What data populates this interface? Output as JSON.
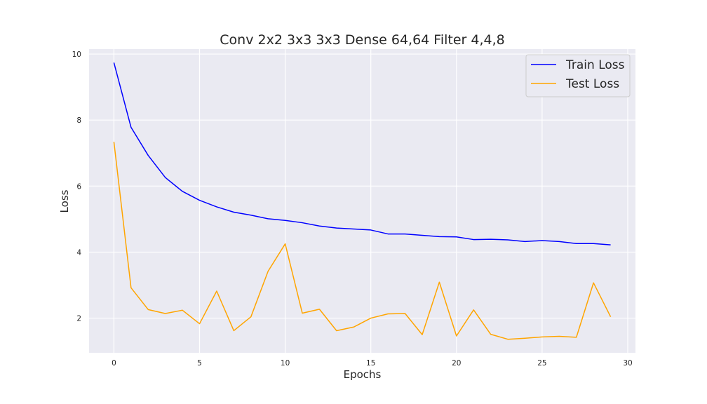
{
  "chart_data": {
    "type": "line",
    "title": "Conv 2x2 3x3 3x3 Dense 64,64 Filter 4,4,8",
    "xlabel": "Epochs",
    "ylabel": "Loss",
    "xlim": [
      -1.45,
      30.45
    ],
    "ylim": [
      0.95,
      10.15
    ],
    "xticks": [
      0,
      5,
      10,
      15,
      20,
      25,
      30
    ],
    "yticks": [
      2,
      4,
      6,
      8,
      10
    ],
    "grid": true,
    "legend_position": "top-right",
    "x": [
      0,
      1,
      2,
      3,
      4,
      5,
      6,
      7,
      8,
      9,
      10,
      11,
      12,
      13,
      14,
      15,
      16,
      17,
      18,
      19,
      20,
      21,
      22,
      23,
      24,
      25,
      26,
      27,
      28,
      29
    ],
    "series": [
      {
        "name": "Train Loss",
        "color": "#0000ff",
        "values": [
          9.74,
          7.78,
          6.93,
          6.26,
          5.84,
          5.57,
          5.37,
          5.21,
          5.12,
          5.01,
          4.96,
          4.89,
          4.79,
          4.73,
          4.7,
          4.67,
          4.55,
          4.55,
          4.51,
          4.47,
          4.46,
          4.38,
          4.39,
          4.37,
          4.32,
          4.35,
          4.32,
          4.26,
          4.26,
          4.22
        ]
      },
      {
        "name": "Test Loss",
        "color": "#ffa500",
        "values": [
          7.34,
          2.92,
          2.26,
          2.14,
          2.24,
          1.83,
          2.82,
          1.62,
          2.04,
          3.42,
          4.25,
          2.15,
          2.27,
          1.62,
          1.73,
          2.0,
          2.13,
          2.14,
          1.5,
          3.09,
          1.46,
          2.25,
          1.51,
          1.36,
          1.39,
          1.43,
          1.45,
          1.42,
          3.07,
          2.04
        ]
      }
    ]
  }
}
